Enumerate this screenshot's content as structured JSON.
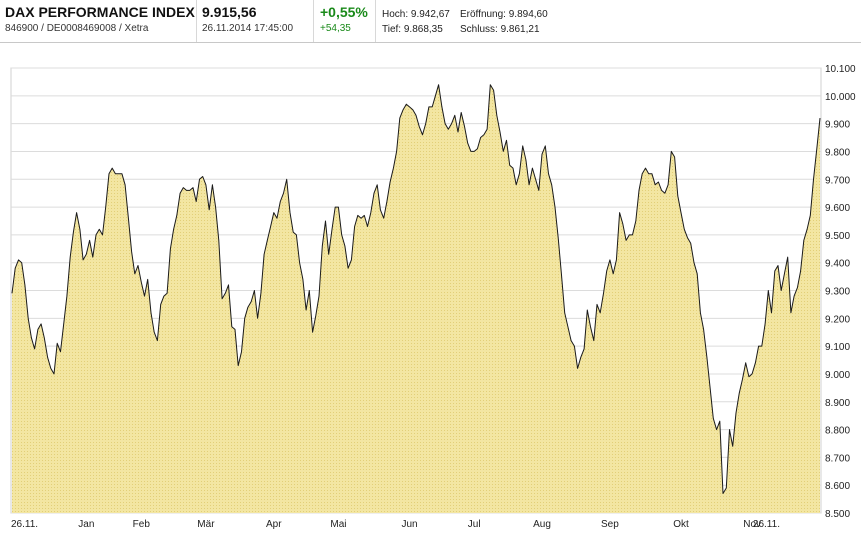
{
  "header": {
    "index_name": "DAX PERFORMANCE INDEX",
    "ids": "846900 / DE0008469008 / Xetra",
    "price": "9.915,56",
    "timestamp": "26.11.2014 17:45:00",
    "change_pct": "+0,55%",
    "change_abs": "+54,35",
    "high_label": "Hoch:",
    "high_value": "9.942,67",
    "open_label": "Eröffnung:",
    "open_value": "9.894,60",
    "low_label": "Tief:",
    "low_value": "9.868,35",
    "close_label": "Schluss:",
    "close_value": "9.861,21"
  },
  "colors": {
    "positive": "#1a8a1a",
    "fill": "#f3e6a2",
    "line": "#1a1a1a",
    "grid": "#dcdcdc"
  },
  "chart_data": {
    "type": "area",
    "title": "",
    "xlabel": "",
    "ylabel": "",
    "ylim": [
      8500,
      10100
    ],
    "y_ticks": [
      "8.500",
      "8.600",
      "8.700",
      "8.800",
      "8.900",
      "9.000",
      "9.100",
      "9.200",
      "9.300",
      "9.400",
      "9.500",
      "9.600",
      "9.700",
      "9.800",
      "9.900",
      "10.000",
      "10.100"
    ],
    "x_ticks": [
      {
        "label": "26.11.",
        "i": 0
      },
      {
        "label": "Jan",
        "i": 23
      },
      {
        "label": "Feb",
        "i": 40
      },
      {
        "label": "Mär",
        "i": 60
      },
      {
        "label": "Apr",
        "i": 81
      },
      {
        "label": "Mai",
        "i": 101
      },
      {
        "label": "Jun",
        "i": 123
      },
      {
        "label": "Jul",
        "i": 143
      },
      {
        "label": "Aug",
        "i": 164
      },
      {
        "label": "Sep",
        "i": 185
      },
      {
        "label": "Okt",
        "i": 207
      },
      {
        "label": "Nov",
        "i": 229
      },
      {
        "label": "26.11.",
        "i": 237
      }
    ],
    "series": [
      {
        "values": [
          9290,
          9380,
          9410,
          9400,
          9320,
          9200,
          9130,
          9090,
          9160,
          9180,
          9130,
          9060,
          9020,
          9000,
          9110,
          9080,
          9180,
          9280,
          9420,
          9510,
          9580,
          9520,
          9410,
          9430,
          9480,
          9420,
          9500,
          9520,
          9500,
          9600,
          9720,
          9740,
          9720,
          9720,
          9720,
          9680,
          9560,
          9440,
          9360,
          9390,
          9330,
          9280,
          9340,
          9220,
          9150,
          9120,
          9250,
          9280,
          9290,
          9450,
          9520,
          9570,
          9650,
          9670,
          9660,
          9660,
          9670,
          9620,
          9700,
          9710,
          9680,
          9590,
          9680,
          9600,
          9480,
          9270,
          9290,
          9320,
          9170,
          9160,
          9030,
          9080,
          9200,
          9240,
          9260,
          9300,
          9200,
          9290,
          9430,
          9480,
          9530,
          9580,
          9560,
          9620,
          9650,
          9700,
          9580,
          9510,
          9500,
          9400,
          9340,
          9230,
          9300,
          9150,
          9210,
          9280,
          9460,
          9550,
          9430,
          9520,
          9600,
          9600,
          9500,
          9460,
          9380,
          9410,
          9530,
          9570,
          9560,
          9570,
          9530,
          9580,
          9650,
          9680,
          9590,
          9560,
          9620,
          9690,
          9740,
          9800,
          9920,
          9950,
          9970,
          9960,
          9950,
          9930,
          9890,
          9860,
          9900,
          9960,
          9960,
          10000,
          10040,
          9960,
          9900,
          9880,
          9900,
          9930,
          9870,
          9940,
          9890,
          9830,
          9800,
          9800,
          9810,
          9850,
          9860,
          9880,
          10040,
          10020,
          9930,
          9870,
          9800,
          9840,
          9750,
          9740,
          9680,
          9720,
          9820,
          9770,
          9680,
          9740,
          9700,
          9660,
          9790,
          9820,
          9720,
          9680,
          9600,
          9490,
          9360,
          9220,
          9170,
          9120,
          9100,
          9020,
          9060,
          9090,
          9230,
          9170,
          9120,
          9250,
          9220,
          9290,
          9370,
          9410,
          9360,
          9410,
          9580,
          9540,
          9480,
          9500,
          9500,
          9550,
          9660,
          9720,
          9740,
          9720,
          9720,
          9680,
          9690,
          9660,
          9650,
          9680,
          9800,
          9780,
          9640,
          9580,
          9520,
          9490,
          9470,
          9400,
          9360,
          9220,
          9160,
          9060,
          8950,
          8840,
          8800,
          8830,
          8570,
          8590,
          8800,
          8740,
          8860,
          8930,
          8980,
          9040,
          8990,
          9000,
          9040,
          9100,
          9100,
          9180,
          9300,
          9220,
          9370,
          9390,
          9300,
          9360,
          9420,
          9220,
          9280,
          9310,
          9370,
          9480,
          9520,
          9570,
          9700,
          9810,
          9920
        ]
      }
    ]
  }
}
